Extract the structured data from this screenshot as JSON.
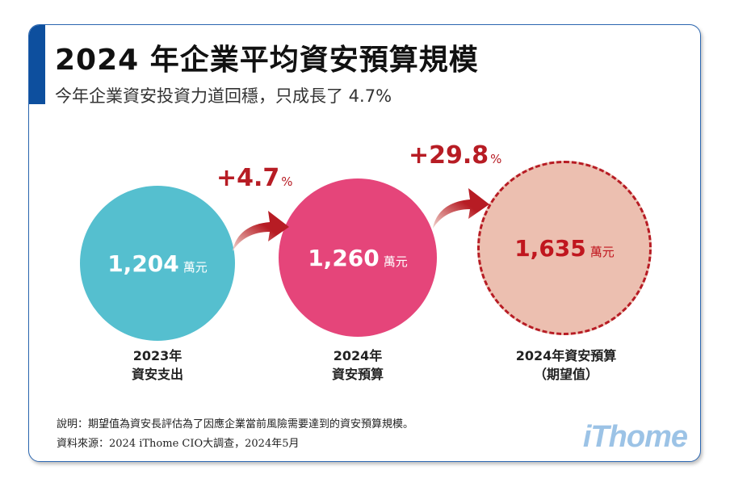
{
  "title": "2024 年企業平均資安預算規模",
  "subtitle": "今年企業資安投資力道回穩，只成長了 4.7%",
  "items": [
    {
      "value": "1,204",
      "unit": "萬元",
      "label1": "2023年",
      "label2": "資安支出",
      "color": "#55bfcf"
    },
    {
      "value": "1,260",
      "unit": "萬元",
      "label1": "2024年",
      "label2": "資安預算",
      "color": "#e5457a"
    },
    {
      "value": "1,635",
      "unit": "萬元",
      "label1": "2024年資安預算",
      "label2": "（期望值）",
      "color": "#ecbfb0"
    }
  ],
  "growth": [
    {
      "value": "+4.7",
      "unit": "%"
    },
    {
      "value": "+29.8",
      "unit": "%"
    }
  ],
  "accent": "#b71c24",
  "notes": [
    "說明：期望值為資安長評估為了因應企業當前風險需要達到的資安預算規模。",
    "資料來源：2024 iThome CIO大調查，2024年5月"
  ],
  "logo": "iThome"
}
